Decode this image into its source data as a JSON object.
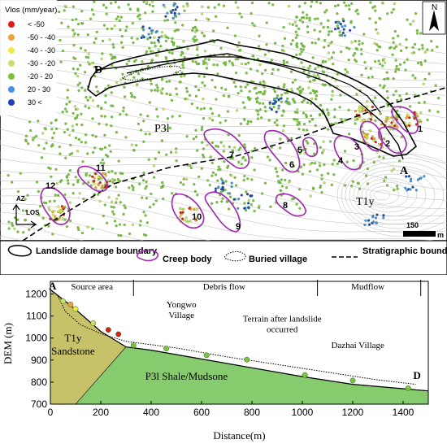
{
  "colors": {
    "lt_neg50": "#e01a1a",
    "n50_n40": "#f0a23a",
    "n40_n30": "#f0ea42",
    "n30_n20": "#c7e06a",
    "n20_20": "#7cc242",
    "p20_30": "#4a90e2",
    "gt30": "#1f3fbf",
    "creep": "#a030b0",
    "sandstone": "#c7c16a",
    "shale": "#86cc6e"
  },
  "map": {
    "legend_title": "Vlos  (mm/year)",
    "velocity_classes": [
      {
        "label": "< -50",
        "color_key": "lt_neg50"
      },
      {
        "label": "-50 - -40",
        "color_key": "n50_n40"
      },
      {
        "label": "-40 - -30",
        "color_key": "n40_n30"
      },
      {
        "label": "-30 - -20",
        "color_key": "n30_n20"
      },
      {
        "label": "-20 - 20",
        "color_key": "n20_20"
      },
      {
        "label": "20 - 30",
        "color_key": "p20_30"
      },
      {
        "label": "30 <",
        "color_key": "gt30"
      }
    ],
    "north_label": "N",
    "point_d": "D",
    "point_a": "A",
    "unit_p3l": "P3l",
    "unit_t1y": "T1y",
    "creep_numbers": [
      "1",
      "2",
      "3",
      "4",
      "5",
      "6",
      "7",
      "8",
      "9",
      "10",
      "11",
      "12"
    ],
    "az_label": "AZ",
    "los_label": "LOS",
    "scale_value": "150",
    "scale_unit": "m"
  },
  "legend": {
    "landslide_boundary": "Landslide damage boundary",
    "creep_body": "Creep body",
    "buried_village": "Buried village",
    "stratigraphic_boundary": "Stratigraphic boundary"
  },
  "profile": {
    "start_label": "A",
    "end_label": "D",
    "zones": [
      "Source area",
      "Debris flow",
      "Mudflow"
    ],
    "yongwo_village": "Yongwo Village",
    "terrain_note": "Terrain after landslide occurred",
    "dazhai_village": "Dazhai Village",
    "sandstone_label": "T1y Sandstone",
    "shale_label": "P3l Shale/Mudsone",
    "ylabel": "DEM (m)",
    "xlabel": "Distance(m)",
    "x_ticks": [
      "0",
      "200",
      "400",
      "600",
      "800",
      "1000",
      "1200",
      "1400"
    ],
    "y_ticks": [
      "700",
      "800",
      "900",
      "1000",
      "1100",
      "1200"
    ]
  },
  "chart_data": {
    "type": "line",
    "xlabel": "Distance(m)",
    "ylabel": "DEM (m)",
    "xlim": [
      0,
      1500
    ],
    "ylim": [
      700,
      1250
    ],
    "series": [
      {
        "x": [
          0,
          100,
          200,
          300,
          400,
          600,
          800,
          1000,
          1200,
          1400,
          1500
        ],
        "y": [
          1220,
          1130,
          1030,
          960,
          945,
          905,
          865,
          825,
          790,
          770,
          760
        ]
      }
    ],
    "points": [
      {
        "x": 50,
        "y": 1160,
        "color_key": "n30_n20"
      },
      {
        "x": 80,
        "y": 1145,
        "color_key": "n50_n40"
      },
      {
        "x": 100,
        "y": 1125,
        "color_key": "n40_n30"
      },
      {
        "x": 170,
        "y": 1060,
        "color_key": "n30_n20"
      },
      {
        "x": 230,
        "y": 1030,
        "color_key": "lt_neg50"
      },
      {
        "x": 270,
        "y": 1010,
        "color_key": "lt_neg50"
      },
      {
        "x": 330,
        "y": 960,
        "color_key": "n20_20"
      },
      {
        "x": 460,
        "y": 945,
        "color_key": "n20_20"
      },
      {
        "x": 620,
        "y": 915,
        "color_key": "n20_20"
      },
      {
        "x": 780,
        "y": 895,
        "color_key": "n20_20"
      },
      {
        "x": 1010,
        "y": 825,
        "color_key": "n20_20"
      },
      {
        "x": 1200,
        "y": 800,
        "color_key": "n20_20"
      },
      {
        "x": 1420,
        "y": 765,
        "color_key": "n20_20"
      }
    ]
  }
}
